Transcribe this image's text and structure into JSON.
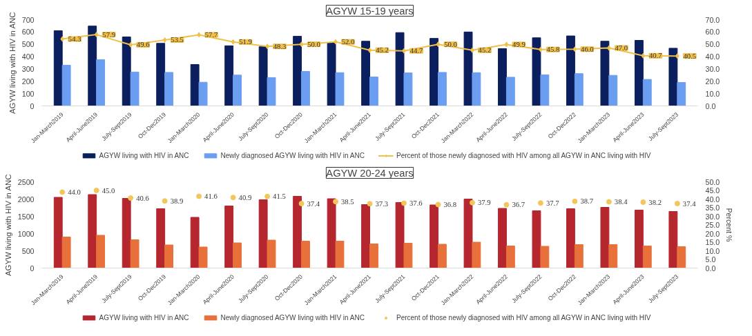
{
  "chart_data": [
    {
      "type": "bar",
      "title": "AGYW 15-19 years",
      "ylabel": "AGYW living with HIV in ANC",
      "categories": [
        "Jan-March2019",
        "April-June2019",
        "July-Sept2019",
        "Oct-Dec2019",
        "Jan-March2020",
        "April-June2020",
        "July-Sept2020",
        "Oct-Dec2020",
        "Jan-March2021",
        "April-June2021",
        "July-Sept2021",
        "Oct-Dec2021",
        "Jan-March2022",
        "April-June2022",
        "July-Sept2022",
        "Oct-Dec2022",
        "Jan-March2023",
        "April-June2023",
        "July-Sept2023"
      ],
      "series": [
        {
          "name": "AGYW living with HIV in ANC",
          "color": "#0b1f5e",
          "values": [
            610,
            648,
            560,
            508,
            336,
            488,
            480,
            565,
            515,
            525,
            595,
            548,
            600,
            465,
            553,
            568,
            525,
            532,
            468
          ]
        },
        {
          "name": "Newly diagnosed AGYW living with HIV in ANC",
          "color": "#6b9ef0",
          "values": [
            330,
            375,
            275,
            272,
            192,
            250,
            230,
            280,
            270,
            235,
            268,
            272,
            270,
            233,
            252,
            262,
            248,
            215,
            190
          ]
        },
        {
          "name": "Percent of those newly diagnosed with HIV among all AGYW in ANC living with HIV",
          "type": "line",
          "axis": "y2",
          "color": "#f0c04a",
          "marker": "diamond",
          "values": [
            54.3,
            57.9,
            49.6,
            53.5,
            57.7,
            51.9,
            48.3,
            50.0,
            52.0,
            45.2,
            44.7,
            50.0,
            45.2,
            49.9,
            45.8,
            46.0,
            47.0,
            40.7,
            40.5
          ],
          "value_labels": [
            "54.3",
            "57.9",
            "49.6",
            "53.5",
            "57.7",
            "51.9",
            "48.3",
            "50.0",
            "52.0",
            "45.2",
            "44.7",
            "50.0",
            "45.2",
            "49.9",
            "45.8",
            "46.0",
            "47.0",
            "40.7",
            "40.5"
          ]
        }
      ],
      "ylim": [
        0,
        700
      ],
      "yticks": [
        0,
        100,
        200,
        300,
        400,
        500,
        600,
        700
      ],
      "y2lim": [
        0,
        70
      ],
      "y2ticks": [
        {
          "value": 0,
          "label": "0.0"
        },
        {
          "value": 10,
          "label": "10.0"
        },
        {
          "value": 20,
          "label": "20.0"
        },
        {
          "value": 30,
          "label": "30.0"
        },
        {
          "value": 40,
          "label": "40.0"
        },
        {
          "value": 50,
          "label": "50.0"
        },
        {
          "value": 60,
          "label": "60.0"
        },
        {
          "value": 70,
          "label": "70.0"
        }
      ],
      "legend": "bottom",
      "grid": false
    },
    {
      "type": "bar",
      "title": "AGYW 20-24 years",
      "ylabel": "AGYW living with HIV in ANC",
      "y2label": "Percent %",
      "categories": [
        "Jan-March2019",
        "April-June2019",
        "July-Sept2019",
        "Oct-Dec2019",
        "Jan-March2020",
        "April-June2020",
        "July-Sept2020",
        "Oct-Dec2020",
        "Jan-March2021",
        "April-June2021",
        "July-Sept2021",
        "Oct-Dec2021",
        "Jan-March2022",
        "April-June2022",
        "July-Sept2022",
        "Oct-Dec2022",
        "Jan-March2023",
        "April-June2023",
        "July-Sept2023"
      ],
      "series": [
        {
          "name": "AGYW living with HIV in ANC",
          "color": "#b5262e",
          "values": [
            2050,
            2130,
            2020,
            1720,
            1470,
            1800,
            1980,
            2080,
            2010,
            1840,
            1900,
            1830,
            2000,
            1730,
            1660,
            1720,
            1760,
            1680,
            1640
          ]
        },
        {
          "name": "Newly diagnosed AGYW living with HIV in ANC",
          "color": "#e8703a",
          "values": [
            900,
            950,
            820,
            670,
            610,
            730,
            810,
            780,
            780,
            700,
            720,
            690,
            750,
            640,
            630,
            680,
            680,
            640,
            620
          ]
        },
        {
          "name": "Percent of those newly diagnosed with HIV among all AGYW in ANC living with HIV",
          "type": "scatter",
          "axis": "y2",
          "color": "#f3c65c",
          "marker": "circle",
          "values": [
            44.0,
            45.0,
            40.6,
            38.9,
            41.6,
            40.9,
            41.5,
            37.4,
            38.5,
            37.3,
            37.6,
            36.8,
            37.9,
            36.7,
            37.7,
            38.7,
            38.4,
            38.2,
            37.4
          ],
          "value_labels": [
            "44.0",
            "45.0",
            "40.6",
            "38.9",
            "41.6",
            "40.9",
            "41.5",
            "37.4",
            "38.5",
            "37.3",
            "37.6",
            "36.8",
            "37.9",
            "36.7",
            "37.7",
            "38.7",
            "38.4",
            "38.2",
            "37.4"
          ]
        }
      ],
      "ylim": [
        0,
        2500
      ],
      "yticks": [
        0,
        500,
        1000,
        1500,
        2000,
        2500
      ],
      "y2lim": [
        0,
        50
      ],
      "y2ticks": [
        {
          "value": 0,
          "label": "0.0"
        },
        {
          "value": 5,
          "label": "5.0"
        },
        {
          "value": 10,
          "label": "10.0"
        },
        {
          "value": 15,
          "label": "15.0"
        },
        {
          "value": 20,
          "label": "20.0"
        },
        {
          "value": 25,
          "label": "25.0"
        },
        {
          "value": 30,
          "label": "30.0"
        },
        {
          "value": 35,
          "label": "35.0"
        },
        {
          "value": 40,
          "label": "40.0"
        },
        {
          "value": 45,
          "label": "45.0"
        },
        {
          "value": 50,
          "label": "50.0"
        }
      ],
      "legend": "bottom",
      "grid": false
    }
  ]
}
